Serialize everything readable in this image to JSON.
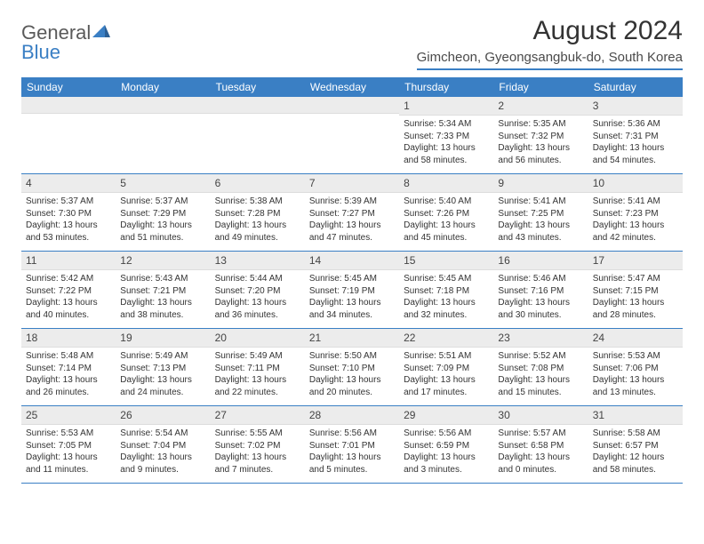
{
  "logo": {
    "text1": "General",
    "text2": "Blue"
  },
  "title": "August 2024",
  "location": "Gimcheon, Gyeongsangbuk-do, South Korea",
  "colors": {
    "accent": "#3a7fc4",
    "header_bg": "#3a7fc4",
    "daynum_bg": "#ececec"
  },
  "weekdays": [
    "Sunday",
    "Monday",
    "Tuesday",
    "Wednesday",
    "Thursday",
    "Friday",
    "Saturday"
  ],
  "weeks": [
    [
      null,
      null,
      null,
      null,
      {
        "n": "1",
        "sr": "5:34 AM",
        "ss": "7:33 PM",
        "dl": "13 hours and 58 minutes."
      },
      {
        "n": "2",
        "sr": "5:35 AM",
        "ss": "7:32 PM",
        "dl": "13 hours and 56 minutes."
      },
      {
        "n": "3",
        "sr": "5:36 AM",
        "ss": "7:31 PM",
        "dl": "13 hours and 54 minutes."
      }
    ],
    [
      {
        "n": "4",
        "sr": "5:37 AM",
        "ss": "7:30 PM",
        "dl": "13 hours and 53 minutes."
      },
      {
        "n": "5",
        "sr": "5:37 AM",
        "ss": "7:29 PM",
        "dl": "13 hours and 51 minutes."
      },
      {
        "n": "6",
        "sr": "5:38 AM",
        "ss": "7:28 PM",
        "dl": "13 hours and 49 minutes."
      },
      {
        "n": "7",
        "sr": "5:39 AM",
        "ss": "7:27 PM",
        "dl": "13 hours and 47 minutes."
      },
      {
        "n": "8",
        "sr": "5:40 AM",
        "ss": "7:26 PM",
        "dl": "13 hours and 45 minutes."
      },
      {
        "n": "9",
        "sr": "5:41 AM",
        "ss": "7:25 PM",
        "dl": "13 hours and 43 minutes."
      },
      {
        "n": "10",
        "sr": "5:41 AM",
        "ss": "7:23 PM",
        "dl": "13 hours and 42 minutes."
      }
    ],
    [
      {
        "n": "11",
        "sr": "5:42 AM",
        "ss": "7:22 PM",
        "dl": "13 hours and 40 minutes."
      },
      {
        "n": "12",
        "sr": "5:43 AM",
        "ss": "7:21 PM",
        "dl": "13 hours and 38 minutes."
      },
      {
        "n": "13",
        "sr": "5:44 AM",
        "ss": "7:20 PM",
        "dl": "13 hours and 36 minutes."
      },
      {
        "n": "14",
        "sr": "5:45 AM",
        "ss": "7:19 PM",
        "dl": "13 hours and 34 minutes."
      },
      {
        "n": "15",
        "sr": "5:45 AM",
        "ss": "7:18 PM",
        "dl": "13 hours and 32 minutes."
      },
      {
        "n": "16",
        "sr": "5:46 AM",
        "ss": "7:16 PM",
        "dl": "13 hours and 30 minutes."
      },
      {
        "n": "17",
        "sr": "5:47 AM",
        "ss": "7:15 PM",
        "dl": "13 hours and 28 minutes."
      }
    ],
    [
      {
        "n": "18",
        "sr": "5:48 AM",
        "ss": "7:14 PM",
        "dl": "13 hours and 26 minutes."
      },
      {
        "n": "19",
        "sr": "5:49 AM",
        "ss": "7:13 PM",
        "dl": "13 hours and 24 minutes."
      },
      {
        "n": "20",
        "sr": "5:49 AM",
        "ss": "7:11 PM",
        "dl": "13 hours and 22 minutes."
      },
      {
        "n": "21",
        "sr": "5:50 AM",
        "ss": "7:10 PM",
        "dl": "13 hours and 20 minutes."
      },
      {
        "n": "22",
        "sr": "5:51 AM",
        "ss": "7:09 PM",
        "dl": "13 hours and 17 minutes."
      },
      {
        "n": "23",
        "sr": "5:52 AM",
        "ss": "7:08 PM",
        "dl": "13 hours and 15 minutes."
      },
      {
        "n": "24",
        "sr": "5:53 AM",
        "ss": "7:06 PM",
        "dl": "13 hours and 13 minutes."
      }
    ],
    [
      {
        "n": "25",
        "sr": "5:53 AM",
        "ss": "7:05 PM",
        "dl": "13 hours and 11 minutes."
      },
      {
        "n": "26",
        "sr": "5:54 AM",
        "ss": "7:04 PM",
        "dl": "13 hours and 9 minutes."
      },
      {
        "n": "27",
        "sr": "5:55 AM",
        "ss": "7:02 PM",
        "dl": "13 hours and 7 minutes."
      },
      {
        "n": "28",
        "sr": "5:56 AM",
        "ss": "7:01 PM",
        "dl": "13 hours and 5 minutes."
      },
      {
        "n": "29",
        "sr": "5:56 AM",
        "ss": "6:59 PM",
        "dl": "13 hours and 3 minutes."
      },
      {
        "n": "30",
        "sr": "5:57 AM",
        "ss": "6:58 PM",
        "dl": "13 hours and 0 minutes."
      },
      {
        "n": "31",
        "sr": "5:58 AM",
        "ss": "6:57 PM",
        "dl": "12 hours and 58 minutes."
      }
    ]
  ],
  "labels": {
    "sunrise": "Sunrise:",
    "sunset": "Sunset:",
    "daylight": "Daylight:"
  }
}
